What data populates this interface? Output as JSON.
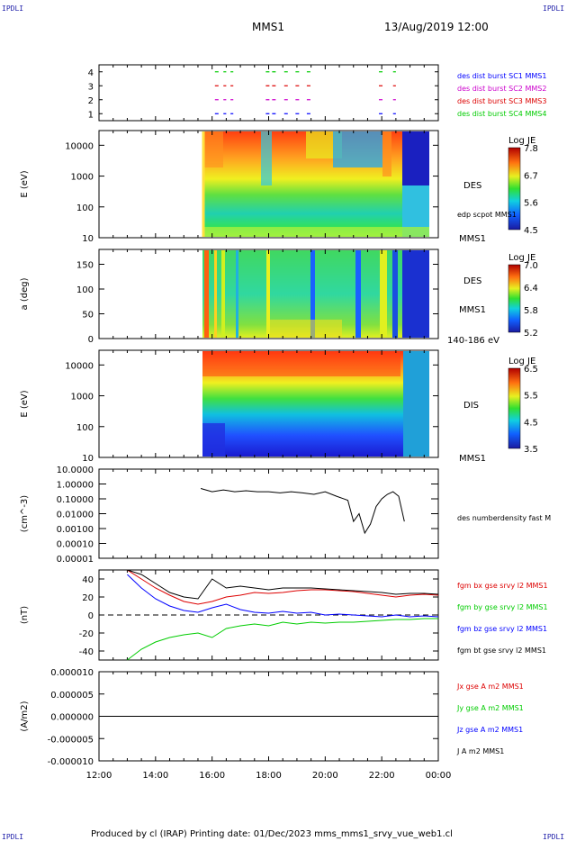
{
  "header": {
    "spacecraft": "MMS1",
    "datetime": "13/Aug/2019 12:00",
    "corner_tl": "IPDLI",
    "corner_tr": "IPDLI",
    "corner_bl": "IPDLI",
    "corner_br": "IPDLI"
  },
  "footer": {
    "text": "Produced by cl (IRAP)   Printing date: 01/Dec/2023   mms_mms1_srvy_vue_web1.cl"
  },
  "time_axis": {
    "ticks": [
      "12:00",
      "14:00",
      "16:00",
      "18:00",
      "20:00",
      "22:00",
      "00:00"
    ]
  },
  "colors": {
    "mms1": "#0000ff",
    "mms2": "#cc00cc",
    "mms3": "#dd0000",
    "mms4": "#00cc00",
    "bx": "#dd0000",
    "by": "#00cc00",
    "bz": "#0000ff",
    "bt": "#000000"
  },
  "chart_data": [
    {
      "type": "scatter",
      "panel": "burst-availability",
      "x_unit": "hours since 12:00",
      "yticks": [
        "1",
        "2",
        "3",
        "4"
      ],
      "ylim": [
        0.5,
        4.5
      ],
      "legend": [
        "des dist burst SC1 MMS1",
        "des dist burst SC2 MMS2",
        "des dist burst SC3 MMS3",
        "des dist burst SC4 MMS4"
      ],
      "series": [
        {
          "name": "des dist burst SC1 MMS1",
          "y": 1,
          "segments": [
            [
              4.1,
              4.25
            ],
            [
              4.4,
              4.5
            ],
            [
              4.65,
              4.75
            ],
            [
              5.9,
              6.3
            ],
            [
              6.55,
              6.7
            ],
            [
              6.95,
              7.1
            ],
            [
              7.35,
              7.5
            ],
            [
              9.9,
              10.05
            ],
            [
              10.4,
              10.5
            ]
          ]
        },
        {
          "name": "des dist burst SC2 MMS2",
          "y": 2,
          "segments": [
            [
              4.1,
              4.25
            ],
            [
              4.4,
              4.5
            ],
            [
              4.65,
              4.75
            ],
            [
              5.9,
              6.3
            ],
            [
              6.55,
              6.7
            ],
            [
              6.95,
              7.1
            ],
            [
              7.35,
              7.5
            ],
            [
              9.9,
              10.05
            ],
            [
              10.4,
              10.5
            ]
          ]
        },
        {
          "name": "des dist burst SC3 MMS3",
          "y": 3,
          "segments": [
            [
              4.1,
              4.25
            ],
            [
              4.4,
              4.5
            ],
            [
              4.65,
              4.75
            ],
            [
              5.9,
              6.3
            ],
            [
              6.55,
              6.7
            ],
            [
              6.95,
              7.1
            ],
            [
              7.35,
              7.5
            ],
            [
              9.9,
              10.05
            ],
            [
              10.4,
              10.5
            ]
          ]
        },
        {
          "name": "des dist burst SC4 MMS4",
          "y": 4,
          "segments": [
            [
              4.1,
              4.25
            ],
            [
              4.4,
              4.5
            ],
            [
              4.65,
              4.75
            ],
            [
              5.9,
              6.3
            ],
            [
              6.55,
              6.7
            ],
            [
              6.95,
              7.1
            ],
            [
              7.35,
              7.5
            ],
            [
              9.9,
              10.05
            ],
            [
              10.4,
              10.5
            ]
          ]
        }
      ]
    },
    {
      "type": "heatmap",
      "panel": "des-energy",
      "ylabel": "E (eV)",
      "yticks": [
        "10",
        "100",
        "1000",
        "10000"
      ],
      "ylim": [
        10,
        30000
      ],
      "yscale": "log",
      "label_right": [
        "DES",
        "edp scpot MMS1",
        "MMS1"
      ],
      "colorbar": {
        "title": "Log JE",
        "ticks": [
          "7.8",
          "6.7",
          "5.6",
          "4.5"
        ],
        "range": [
          4.5,
          7.8
        ]
      },
      "data_start": 3.6,
      "data_end": 11.8
    },
    {
      "type": "heatmap",
      "panel": "des-pitch-angle",
      "ylabel": "a (deg)",
      "yticks": [
        "0",
        "50",
        "100",
        "150"
      ],
      "ylim": [
        0,
        180
      ],
      "label_right": [
        "DES",
        "MMS1",
        "140-186 eV"
      ],
      "colorbar": {
        "title": "Log JE",
        "ticks": [
          "7.0",
          "6.4",
          "5.8",
          "5.2"
        ],
        "range": [
          5.2,
          7.0
        ]
      },
      "data_start": 3.6,
      "data_end": 11.8
    },
    {
      "type": "heatmap",
      "panel": "dis-energy",
      "ylabel": "E (eV)",
      "yticks": [
        "10",
        "100",
        "1000",
        "10000"
      ],
      "ylim": [
        10,
        30000
      ],
      "yscale": "log",
      "label_right": [
        "DIS",
        "MMS1"
      ],
      "colorbar": {
        "title": "Log JE",
        "ticks": [
          "6.5",
          "5.5",
          "4.5",
          "3.5"
        ],
        "range": [
          3.5,
          6.5
        ]
      },
      "data_start": 3.6,
      "data_end": 11.8
    },
    {
      "type": "line",
      "panel": "density",
      "ylabel": "(cm^-3)",
      "yscale": "log",
      "yticks": [
        "10.0000",
        "1.00000",
        "0.10000",
        "0.01000",
        "0.00100",
        "0.00010",
        "0.00001"
      ],
      "ylim": [
        1e-05,
        10
      ],
      "legend": [
        "des numberdensity fast M"
      ],
      "x": [
        3.6,
        4.0,
        4.4,
        4.8,
        5.2,
        5.6,
        6.0,
        6.4,
        6.8,
        7.2,
        7.6,
        8.0,
        8.4,
        8.8,
        9.0,
        9.2,
        9.4,
        9.6,
        9.8,
        10.0,
        10.2,
        10.4,
        10.6,
        10.8
      ],
      "values": [
        0.5,
        0.3,
        0.4,
        0.3,
        0.35,
        0.3,
        0.3,
        0.25,
        0.3,
        0.25,
        0.2,
        0.3,
        0.15,
        0.08,
        0.003,
        0.01,
        0.0005,
        0.002,
        0.03,
        0.1,
        0.2,
        0.3,
        0.15,
        0.003
      ]
    },
    {
      "type": "line",
      "panel": "magnetic-field",
      "ylabel": "(nT)",
      "yticks": [
        "40",
        "20",
        "0",
        "-20",
        "-40"
      ],
      "ylim": [
        -50,
        50
      ],
      "legend": [
        "fgm bx gse srvy l2 MMS1",
        "fgm by gse srvy l2 MMS1",
        "fgm bz gse srvy l2 MMS1",
        "fgm bt gse srvy l2 MMS1"
      ],
      "x": [
        1.0,
        1.5,
        2.0,
        2.5,
        3.0,
        3.5,
        4.0,
        4.5,
        5.0,
        5.5,
        6.0,
        6.5,
        7.0,
        7.5,
        8.0,
        8.5,
        9.0,
        9.5,
        10.0,
        10.5,
        11.0,
        11.5,
        12.0
      ],
      "series": [
        {
          "name": "fgm bx gse srvy l2 MMS1",
          "values": [
            50,
            40,
            30,
            22,
            15,
            12,
            15,
            20,
            22,
            25,
            24,
            25,
            27,
            28,
            28,
            27,
            26,
            24,
            22,
            20,
            22,
            23,
            22
          ]
        },
        {
          "name": "fgm by gse srvy l2 MMS1",
          "values": [
            -50,
            -38,
            -30,
            -25,
            -22,
            -20,
            -25,
            -15,
            -12,
            -10,
            -12,
            -8,
            -10,
            -8,
            -9,
            -8,
            -8,
            -7,
            -6,
            -5,
            -5,
            -4,
            -4
          ]
        },
        {
          "name": "fgm bz gse srvy l2 MMS1",
          "values": [
            45,
            30,
            18,
            10,
            5,
            3,
            8,
            12,
            6,
            3,
            2,
            4,
            2,
            3,
            0,
            1,
            0,
            -1,
            -2,
            0,
            -2,
            -1,
            -2
          ]
        },
        {
          "name": "fgm bt gse srvy l2 MMS1",
          "values": [
            50,
            45,
            35,
            25,
            20,
            18,
            40,
            30,
            32,
            30,
            28,
            30,
            30,
            30,
            29,
            28,
            27,
            26,
            25,
            23,
            24,
            24,
            23
          ]
        }
      ]
    },
    {
      "type": "line",
      "panel": "current-density",
      "ylabel": "(A/m2)",
      "yticks": [
        "0.000010",
        "0.000005",
        "0.000000",
        "-0.000005",
        "-0.000010"
      ],
      "ylim": [
        -1e-05,
        1e-05
      ],
      "legend": [
        "Jx gse A m2 MMS1",
        "Jy gse A m2 MMS1",
        "Jz gse A m2 MMS1",
        "J A m2 MMS1"
      ],
      "x": [
        0,
        12
      ],
      "series": [
        {
          "name": "J A m2 MMS1",
          "values": [
            0,
            0
          ]
        }
      ]
    }
  ]
}
